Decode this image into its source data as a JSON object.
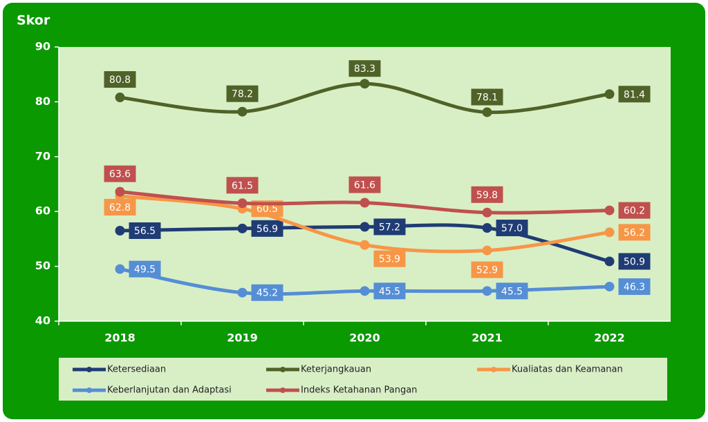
{
  "chart_data": {
    "type": "line",
    "title": "Skor",
    "categories": [
      "2018",
      "2019",
      "2020",
      "2021",
      "2022"
    ],
    "ylim": [
      40,
      90
    ],
    "yticks": [
      40,
      50,
      60,
      70,
      80,
      90
    ],
    "series": [
      {
        "name": "Ketersediaan",
        "color": "#1f3c74",
        "values": [
          56.5,
          56.9,
          57.2,
          57.0,
          50.9
        ],
        "value_labels": [
          "56.5",
          "56.9",
          "57.2",
          "57.0",
          "50.9"
        ]
      },
      {
        "name": "Keterjangkauan",
        "color": "#4f6228",
        "values": [
          80.8,
          78.2,
          83.3,
          78.1,
          81.4
        ]
      },
      {
        "name": "Kualiatas dan Keamanan",
        "color": "#f79646",
        "values": [
          62.8,
          60.5,
          53.9,
          52.9,
          56.2
        ]
      },
      {
        "name": "Keberlanjutan dan Adaptasi",
        "color": "#558ed5",
        "values": [
          49.5,
          45.2,
          45.5,
          45.5,
          46.3
        ]
      },
      {
        "name": "Indeks Ketahanan Pangan",
        "color": "#c0504d",
        "values": [
          63.6,
          61.5,
          61.6,
          59.8,
          60.2
        ]
      }
    ]
  }
}
